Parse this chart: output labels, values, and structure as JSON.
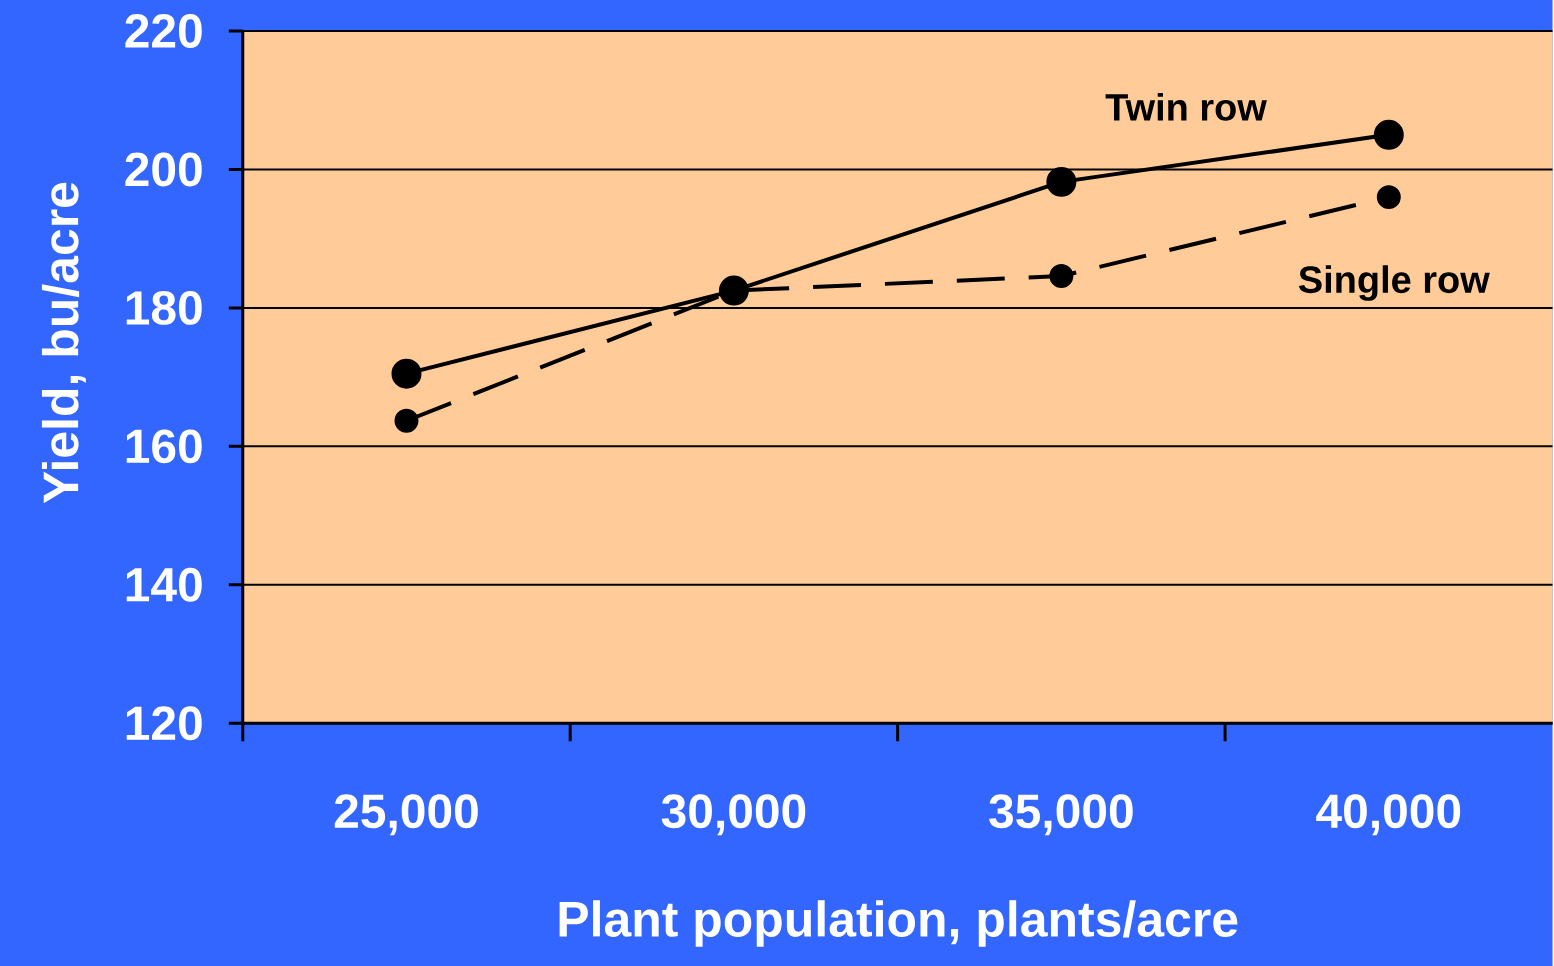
{
  "chart_data": {
    "type": "line",
    "xlabel": "Plant population, plants/acre",
    "ylabel": "Yield, bu/acre",
    "categories": [
      "25,000",
      "30,000",
      "35,000",
      "40,000"
    ],
    "series": [
      {
        "name": "Twin row",
        "color": "#000000",
        "line_style": "solid",
        "values": [
          170.5,
          182.5,
          198.2,
          205
        ]
      },
      {
        "name": "Single row",
        "color": "#000000",
        "line_style": "dashed",
        "values": [
          163.7,
          182.5,
          184.6,
          196
        ]
      }
    ],
    "ylim": [
      120,
      220
    ],
    "yticks": [
      120,
      140,
      160,
      180,
      200,
      220
    ],
    "grid": "y",
    "marker": "circle"
  }
}
